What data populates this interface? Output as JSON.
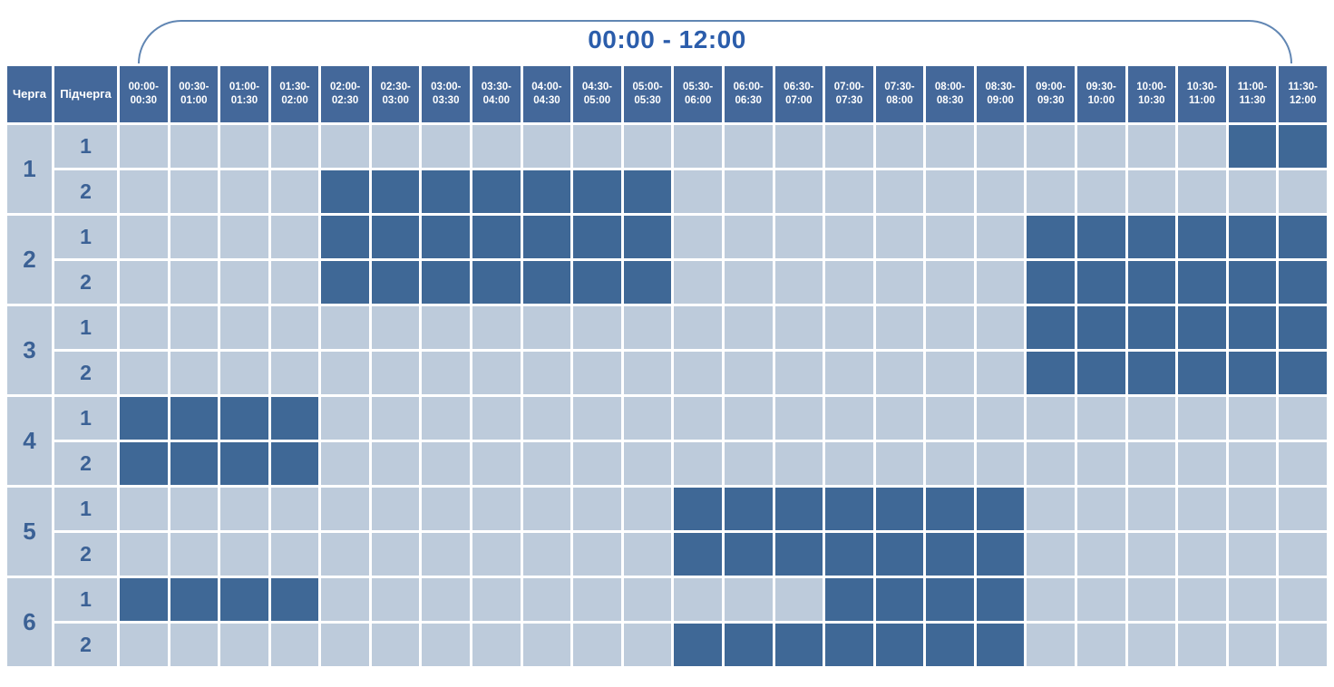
{
  "title": "00:00 - 12:00",
  "colors": {
    "header_bg": "#44689a",
    "cell_power_on": "#bdcbdb",
    "cell_outage": "#3f6896",
    "grid_line": "#ffffff",
    "title_text": "#2b5dab",
    "bracket_line": "#6186b3",
    "header_text": "#ffffff",
    "queue_text": "#3b6195"
  },
  "chart_data": {
    "type": "heatmap",
    "title": "00:00 - 12:00",
    "col_header_queue": "Черга",
    "col_header_subqueue": "Підчерга",
    "value_legend": {
      "1": "outage (dark cell)",
      "0": "power on (light cell)"
    },
    "columns": [
      "00:00-00:30",
      "00:30-01:00",
      "01:00-01:30",
      "01:30-02:00",
      "02:00-02:30",
      "02:30-03:00",
      "03:00-03:30",
      "03:30-04:00",
      "04:00-04:30",
      "04:30-05:00",
      "05:00-05:30",
      "05:30-06:00",
      "06:00-06:30",
      "06:30-07:00",
      "07:00-07:30",
      "07:30-08:00",
      "08:00-08:30",
      "08:30-09:00",
      "09:00-09:30",
      "09:30-10:00",
      "10:00-10:30",
      "10:30-11:00",
      "11:00-11:30",
      "11:30-12:00"
    ],
    "rows": [
      {
        "queue": "1",
        "subqueue": "1",
        "outage": [
          0,
          0,
          0,
          0,
          0,
          0,
          0,
          0,
          0,
          0,
          0,
          0,
          0,
          0,
          0,
          0,
          0,
          0,
          0,
          0,
          0,
          0,
          1,
          1
        ]
      },
      {
        "queue": "1",
        "subqueue": "2",
        "outage": [
          0,
          0,
          0,
          0,
          1,
          1,
          1,
          1,
          1,
          1,
          1,
          0,
          0,
          0,
          0,
          0,
          0,
          0,
          0,
          0,
          0,
          0,
          0,
          0
        ]
      },
      {
        "queue": "2",
        "subqueue": "1",
        "outage": [
          0,
          0,
          0,
          0,
          1,
          1,
          1,
          1,
          1,
          1,
          1,
          0,
          0,
          0,
          0,
          0,
          0,
          0,
          1,
          1,
          1,
          1,
          1,
          1
        ]
      },
      {
        "queue": "2",
        "subqueue": "2",
        "outage": [
          0,
          0,
          0,
          0,
          1,
          1,
          1,
          1,
          1,
          1,
          1,
          0,
          0,
          0,
          0,
          0,
          0,
          0,
          1,
          1,
          1,
          1,
          1,
          1
        ]
      },
      {
        "queue": "3",
        "subqueue": "1",
        "outage": [
          0,
          0,
          0,
          0,
          0,
          0,
          0,
          0,
          0,
          0,
          0,
          0,
          0,
          0,
          0,
          0,
          0,
          0,
          1,
          1,
          1,
          1,
          1,
          1
        ]
      },
      {
        "queue": "3",
        "subqueue": "2",
        "outage": [
          0,
          0,
          0,
          0,
          0,
          0,
          0,
          0,
          0,
          0,
          0,
          0,
          0,
          0,
          0,
          0,
          0,
          0,
          1,
          1,
          1,
          1,
          1,
          1
        ]
      },
      {
        "queue": "4",
        "subqueue": "1",
        "outage": [
          1,
          1,
          1,
          1,
          0,
          0,
          0,
          0,
          0,
          0,
          0,
          0,
          0,
          0,
          0,
          0,
          0,
          0,
          0,
          0,
          0,
          0,
          0,
          0
        ]
      },
      {
        "queue": "4",
        "subqueue": "2",
        "outage": [
          1,
          1,
          1,
          1,
          0,
          0,
          0,
          0,
          0,
          0,
          0,
          0,
          0,
          0,
          0,
          0,
          0,
          0,
          0,
          0,
          0,
          0,
          0,
          0
        ]
      },
      {
        "queue": "5",
        "subqueue": "1",
        "outage": [
          0,
          0,
          0,
          0,
          0,
          0,
          0,
          0,
          0,
          0,
          0,
          1,
          1,
          1,
          1,
          1,
          1,
          1,
          0,
          0,
          0,
          0,
          0,
          0
        ]
      },
      {
        "queue": "5",
        "subqueue": "2",
        "outage": [
          0,
          0,
          0,
          0,
          0,
          0,
          0,
          0,
          0,
          0,
          0,
          1,
          1,
          1,
          1,
          1,
          1,
          1,
          0,
          0,
          0,
          0,
          0,
          0
        ]
      },
      {
        "queue": "6",
        "subqueue": "1",
        "outage": [
          1,
          1,
          1,
          1,
          0,
          0,
          0,
          0,
          0,
          0,
          0,
          0,
          0,
          0,
          1,
          1,
          1,
          1,
          0,
          0,
          0,
          0,
          0,
          0
        ]
      },
      {
        "queue": "6",
        "subqueue": "2",
        "outage": [
          0,
          0,
          0,
          0,
          0,
          0,
          0,
          0,
          0,
          0,
          0,
          1,
          1,
          1,
          1,
          1,
          1,
          1,
          0,
          0,
          0,
          0,
          0,
          0
        ]
      }
    ]
  }
}
